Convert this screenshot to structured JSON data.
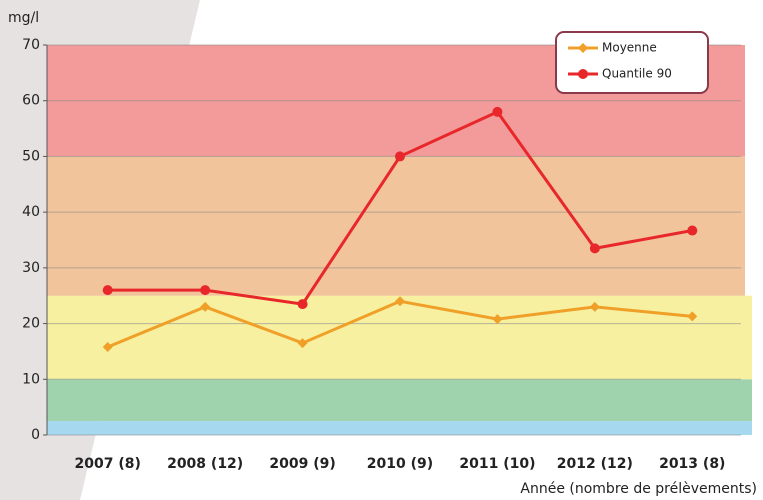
{
  "chart_data": {
    "type": "line",
    "y_label": "mg/l",
    "x_label": "Année (nombre de prélèvements)",
    "categories": [
      "2007 (8)",
      "2008 (12)",
      "2009 (9)",
      "2010 (9)",
      "2011 (10)",
      "2012 (12)",
      "2013 (8)"
    ],
    "series": [
      {
        "name": "Moyenne",
        "color": "#f0a028",
        "marker": "diamond",
        "values": [
          15.8,
          23,
          16.5,
          24,
          20.8,
          23,
          21.3
        ]
      },
      {
        "name": "Quantile 90",
        "color": "#e8272a",
        "marker": "circle",
        "values": [
          26,
          26,
          23.5,
          50,
          58,
          33.5,
          36.7
        ]
      }
    ],
    "bands": [
      {
        "from": 0,
        "to": 2.5,
        "color": "#a6d8f0"
      },
      {
        "from": 2.5,
        "to": 10,
        "color": "#9fd3ad"
      },
      {
        "from": 10,
        "to": 25,
        "color": "#f6f0a0"
      },
      {
        "from": 25,
        "to": 50,
        "color": "#f2c49c"
      },
      {
        "from": 50,
        "to": 70,
        "color": "#f39a9a"
      }
    ],
    "ylim": [
      0,
      70
    ],
    "yticks": [
      0,
      10,
      20,
      30,
      40,
      50,
      60,
      70
    ],
    "grid": true,
    "legend": "top-right"
  }
}
